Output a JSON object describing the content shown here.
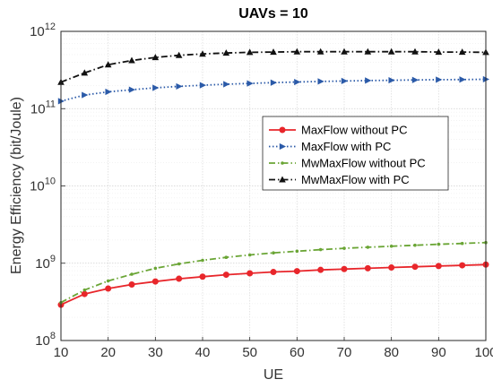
{
  "chart_data": {
    "type": "line",
    "title": "UAVs = 10",
    "xlabel": "UE",
    "ylabel": "Energy Efficiency (bit/Joule)",
    "yscale": "log",
    "xlim": [
      10,
      100
    ],
    "ylim": [
      100000000,
      1000000000000
    ],
    "x_ticks": [
      "10",
      "20",
      "30",
      "40",
      "50",
      "60",
      "70",
      "80",
      "90",
      "100"
    ],
    "x_tick_values": [
      10,
      20,
      30,
      40,
      50,
      60,
      70,
      80,
      90,
      100
    ],
    "y_ticks": [
      {
        "base": "10",
        "exp": "8",
        "value": 100000000
      },
      {
        "base": "10",
        "exp": "9",
        "value": 1000000000
      },
      {
        "base": "10",
        "exp": "10",
        "value": 10000000000
      },
      {
        "base": "10",
        "exp": "11",
        "value": 100000000000
      },
      {
        "base": "10",
        "exp": "12",
        "value": 1000000000000
      }
    ],
    "grid": true,
    "legend_position": "center-right",
    "x": [
      10,
      15,
      20,
      25,
      30,
      35,
      40,
      45,
      50,
      55,
      60,
      65,
      70,
      75,
      80,
      85,
      90,
      95,
      100
    ],
    "series": [
      {
        "name": "MaxFlow without PC",
        "color": "#e8262b",
        "marker": "circle",
        "dash": "solid",
        "values": [
          290000000,
          400000000,
          470000000,
          530000000,
          580000000,
          630000000,
          670000000,
          710000000,
          740000000,
          770000000,
          790000000,
          820000000,
          840000000,
          860000000,
          880000000,
          900000000,
          920000000,
          940000000,
          960000000
        ]
      },
      {
        "name": "MaxFlow with PC",
        "color": "#2b5aa8",
        "marker": "triangle-right",
        "dash": "dotted",
        "values": [
          125000000000,
          150000000000,
          165000000000,
          176000000000,
          186000000000,
          194000000000,
          201000000000,
          207000000000,
          212000000000,
          217000000000,
          221000000000,
          225000000000,
          228000000000,
          231000000000,
          233000000000,
          235000000000,
          237000000000,
          238000000000,
          240000000000
        ]
      },
      {
        "name": "MwMaxFlow without PC",
        "color": "#6aa535",
        "marker": "dot",
        "dash": "dashdot",
        "values": [
          310000000,
          450000000,
          590000000,
          720000000,
          860000000,
          980000000,
          1090000000,
          1190000000,
          1280000000,
          1360000000,
          1430000000,
          1500000000,
          1560000000,
          1610000000,
          1660000000,
          1710000000,
          1760000000,
          1800000000,
          1850000000
        ]
      },
      {
        "name": "MwMaxFlow with PC",
        "color": "#111111",
        "marker": "triangle-up",
        "dash": "dashdot",
        "values": [
          220000000000,
          290000000000,
          370000000000,
          420000000000,
          460000000000,
          490000000000,
          510000000000,
          525000000000,
          535000000000,
          540000000000,
          545000000000,
          545000000000,
          545000000000,
          545000000000,
          545000000000,
          545000000000,
          540000000000,
          540000000000,
          535000000000
        ]
      }
    ]
  }
}
